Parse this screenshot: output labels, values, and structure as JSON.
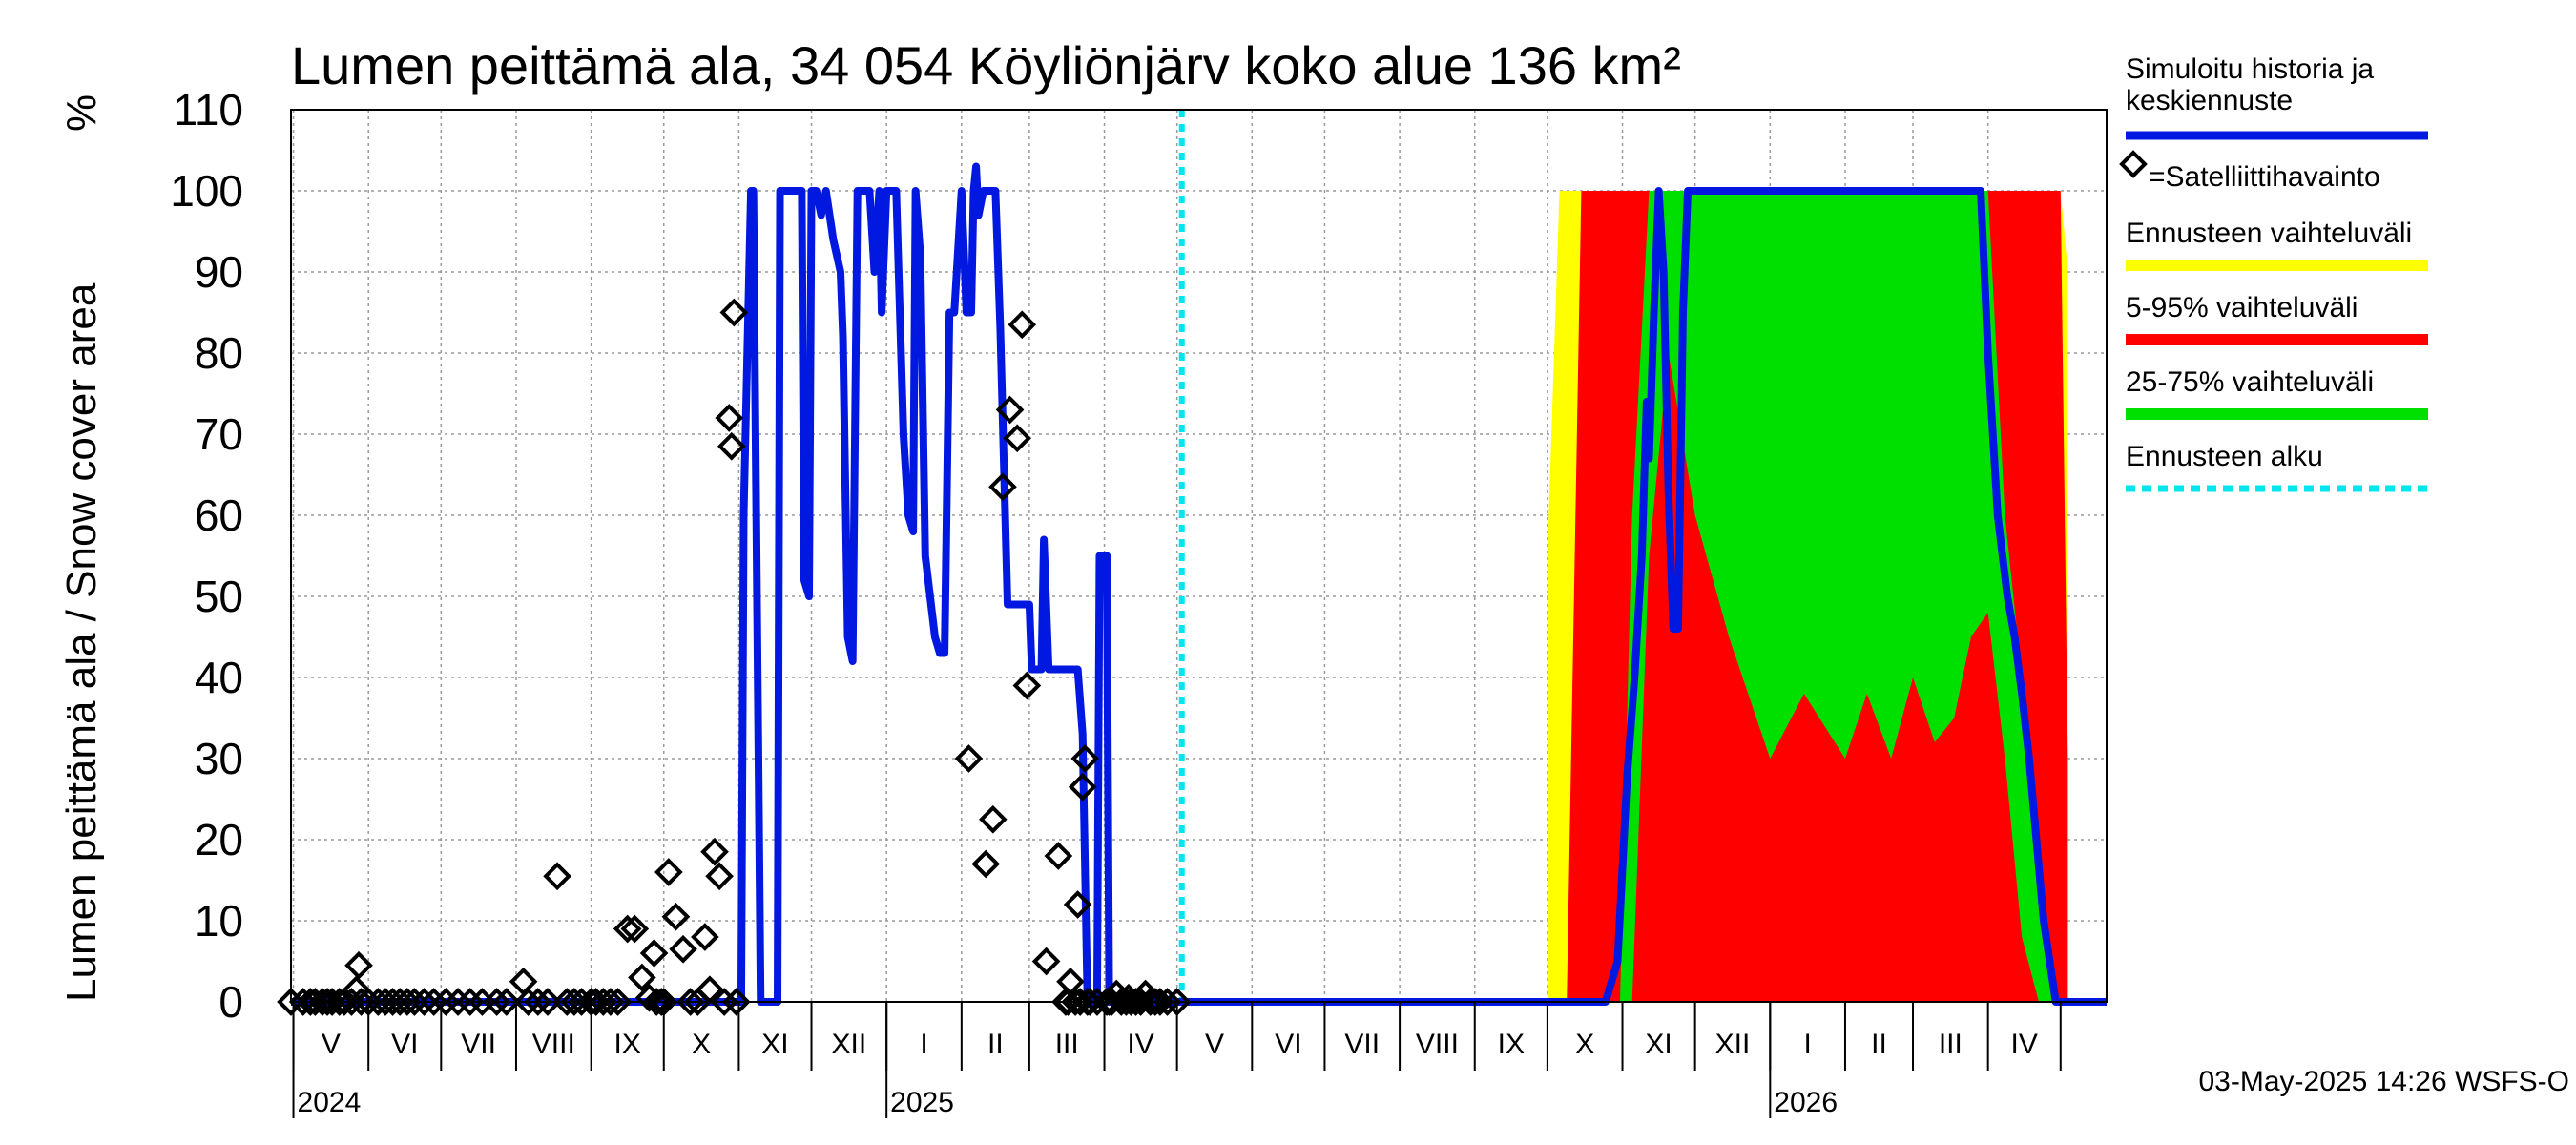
{
  "chart_data": {
    "type": "area",
    "title": "Lumen peittämä ala, 34 054 Köyliönjärv koko alue 136 km²",
    "ylabel": "Lumen peittämä ala / Snow cover area",
    "yunit": "%",
    "ylim": [
      0,
      110
    ],
    "yticks": [
      0,
      10,
      20,
      30,
      40,
      50,
      60,
      70,
      80,
      90,
      100,
      110
    ],
    "xlim": [
      "2024-04-30",
      "2026-05-20"
    ],
    "grid": true,
    "forecast_start": "2025-05-03",
    "timestamp": "03-May-2025 14:26 WSFS-O",
    "months": [
      {
        "label": "V",
        "start": "2024-05-01",
        "end": "2024-06-01"
      },
      {
        "label": "VI",
        "start": "2024-06-01",
        "end": "2024-07-01"
      },
      {
        "label": "VII",
        "start": "2024-07-01",
        "end": "2024-08-01"
      },
      {
        "label": "VIII",
        "start": "2024-08-01",
        "end": "2024-09-01"
      },
      {
        "label": "IX",
        "start": "2024-09-01",
        "end": "2024-10-01"
      },
      {
        "label": "X",
        "start": "2024-10-01",
        "end": "2024-11-01"
      },
      {
        "label": "XI",
        "start": "2024-11-01",
        "end": "2024-12-01"
      },
      {
        "label": "XII",
        "start": "2024-12-01",
        "end": "2025-01-01"
      },
      {
        "label": "I",
        "start": "2025-01-01",
        "end": "2025-02-01"
      },
      {
        "label": "II",
        "start": "2025-02-01",
        "end": "2025-03-01"
      },
      {
        "label": "III",
        "start": "2025-03-01",
        "end": "2025-04-01"
      },
      {
        "label": "IV",
        "start": "2025-04-01",
        "end": "2025-05-01"
      },
      {
        "label": "V",
        "start": "2025-05-01",
        "end": "2025-06-01"
      },
      {
        "label": "VI",
        "start": "2025-06-01",
        "end": "2025-07-01"
      },
      {
        "label": "VII",
        "start": "2025-07-01",
        "end": "2025-08-01"
      },
      {
        "label": "VIII",
        "start": "2025-08-01",
        "end": "2025-09-01"
      },
      {
        "label": "IX",
        "start": "2025-09-01",
        "end": "2025-10-01"
      },
      {
        "label": "X",
        "start": "2025-10-01",
        "end": "2025-11-01"
      },
      {
        "label": "XI",
        "start": "2025-11-01",
        "end": "2025-12-01"
      },
      {
        "label": "XII",
        "start": "2025-12-01",
        "end": "2026-01-01"
      },
      {
        "label": "I",
        "start": "2026-01-01",
        "end": "2026-02-01"
      },
      {
        "label": "II",
        "start": "2026-02-01",
        "end": "2026-03-01"
      },
      {
        "label": "III",
        "start": "2026-03-01",
        "end": "2026-04-01"
      },
      {
        "label": "IV",
        "start": "2026-04-01",
        "end": "2026-05-01"
      }
    ],
    "years": [
      {
        "label": "2024",
        "date": "2024-05-01"
      },
      {
        "label": "2025",
        "date": "2025-01-01"
      },
      {
        "label": "2026",
        "date": "2026-01-01"
      }
    ],
    "legend": [
      {
        "key": "sim",
        "label": "Simuloitu historia ja keskiennuste",
        "color": "#0018e0",
        "kind": "line"
      },
      {
        "key": "sat",
        "label": "=Satelliittihavainto",
        "color": "#000000",
        "kind": "marker"
      },
      {
        "key": "ens",
        "label": "Ennusteen vaihteluväli",
        "color": "#ffff00",
        "kind": "band"
      },
      {
        "key": "p595",
        "label": "5-95% vaihteluväli",
        "color": "#ff0000",
        "kind": "band"
      },
      {
        "key": "p2575",
        "label": "25-75% vaihteluväli",
        "color": "#00e000",
        "kind": "band"
      },
      {
        "key": "fstart",
        "label": "Ennusteen alku",
        "color": "#00e5ee",
        "kind": "dashed"
      }
    ],
    "series": [
      {
        "key": "sim",
        "name": "Simuloitu historia ja keskiennuste",
        "x": [
          "2024-04-30",
          "2024-11-02",
          "2024-11-03",
          "2024-11-06",
          "2024-11-07",
          "2024-11-10",
          "2024-11-11",
          "2024-11-17",
          "2024-11-18",
          "2024-11-22",
          "2024-11-23",
          "2024-11-27",
          "2024-11-28",
          "2024-11-30",
          "2024-12-01",
          "2024-12-03",
          "2024-12-05",
          "2024-12-07",
          "2024-12-10",
          "2024-12-13",
          "2024-12-14",
          "2024-12-16",
          "2024-12-18",
          "2024-12-20",
          "2024-12-22",
          "2024-12-23",
          "2024-12-25",
          "2024-12-27",
          "2024-12-29",
          "2024-12-30",
          "2025-01-01",
          "2025-01-03",
          "2025-01-05",
          "2025-01-06",
          "2025-01-08",
          "2025-01-10",
          "2025-01-12",
          "2025-01-13",
          "2025-01-15",
          "2025-01-17",
          "2025-01-19",
          "2025-01-21",
          "2025-01-23",
          "2025-01-25",
          "2025-01-27",
          "2025-01-29",
          "2025-02-01",
          "2025-02-03",
          "2025-02-05",
          "2025-02-06",
          "2025-02-07",
          "2025-02-08",
          "2025-02-10",
          "2025-02-12",
          "2025-02-15",
          "2025-02-17",
          "2025-02-20",
          "2025-02-23",
          "2025-03-01",
          "2025-03-02",
          "2025-03-06",
          "2025-03-07",
          "2025-03-09",
          "2025-03-11",
          "2025-03-21",
          "2025-03-23",
          "2025-03-25",
          "2025-03-26",
          "2025-03-29",
          "2025-03-30",
          "2025-04-02",
          "2025-04-03",
          "2025-04-06",
          "2025-04-07",
          "2025-04-08",
          "2025-04-09",
          "2025-04-10",
          "2025-04-11",
          "2025-04-12",
          "2025-05-03",
          "2025-10-09",
          "2025-10-20",
          "2025-10-25",
          "2025-10-30",
          "2025-11-03",
          "2025-11-06",
          "2025-11-09",
          "2025-11-11",
          "2025-11-12",
          "2025-11-14",
          "2025-11-16",
          "2025-11-18",
          "2025-11-20",
          "2025-11-22",
          "2025-11-24",
          "2025-11-26",
          "2025-11-28",
          "2025-12-01",
          "2026-03-25",
          "2026-03-29",
          "2026-04-01",
          "2026-04-05",
          "2026-04-09",
          "2026-04-12",
          "2026-04-15",
          "2026-04-18",
          "2026-04-21",
          "2026-04-24",
          "2026-04-27",
          "2026-04-29",
          "2026-05-03",
          "2026-05-20"
        ],
        "y": [
          0,
          0,
          60,
          100,
          100,
          0,
          0,
          0,
          100,
          100,
          100,
          100,
          52,
          50,
          100,
          100,
          97,
          100,
          94,
          90,
          82,
          45,
          42,
          100,
          100,
          100,
          100,
          90,
          100,
          85,
          100,
          100,
          100,
          90,
          70,
          60,
          58,
          100,
          92,
          55,
          50,
          45,
          43,
          43,
          85,
          85,
          100,
          85,
          85,
          100,
          103,
          97,
          100,
          100,
          100,
          83,
          49,
          49,
          49,
          41,
          41,
          57,
          41,
          41,
          41,
          33,
          0,
          0,
          0,
          55,
          55,
          0,
          0,
          0,
          0,
          0,
          0,
          0,
          0,
          0,
          0,
          0,
          0,
          5,
          28,
          40,
          55,
          74,
          67,
          85,
          100,
          90,
          63,
          46,
          46,
          85,
          100,
          100,
          100,
          100,
          80,
          60,
          50,
          45,
          38,
          30,
          20,
          10,
          4,
          0,
          0,
          0
        ]
      }
    ],
    "satellite": {
      "x": [
        "2024-04-30",
        "2024-05-05",
        "2024-05-08",
        "2024-05-10",
        "2024-05-13",
        "2024-05-15",
        "2024-05-17",
        "2024-05-20",
        "2024-05-22",
        "2024-05-25",
        "2024-05-27",
        "2024-05-28",
        "2024-05-29",
        "2024-06-01",
        "2024-06-05",
        "2024-06-08",
        "2024-06-11",
        "2024-06-14",
        "2024-06-17",
        "2024-06-20",
        "2024-06-24",
        "2024-06-28",
        "2024-07-03",
        "2024-07-08",
        "2024-07-13",
        "2024-07-18",
        "2024-07-24",
        "2024-07-28",
        "2024-08-04",
        "2024-08-06",
        "2024-08-10",
        "2024-08-14",
        "2024-08-18",
        "2024-08-22",
        "2024-08-25",
        "2024-08-28",
        "2024-09-01",
        "2024-09-03",
        "2024-09-06",
        "2024-09-09",
        "2024-09-12",
        "2024-09-16",
        "2024-09-19",
        "2024-09-22",
        "2024-09-25",
        "2024-09-27",
        "2024-09-28",
        "2024-09-30",
        "2024-10-01",
        "2024-10-03",
        "2024-10-06",
        "2024-10-09",
        "2024-10-12",
        "2024-10-15",
        "2024-10-18",
        "2024-10-20",
        "2024-10-22",
        "2024-10-24",
        "2024-10-26",
        "2024-10-28",
        "2024-10-29",
        "2024-10-30",
        "2024-10-31",
        "2025-02-04",
        "2025-02-11",
        "2025-02-14",
        "2025-02-18",
        "2025-02-21",
        "2025-02-24",
        "2025-02-26",
        "2025-02-28",
        "2025-03-08",
        "2025-03-13",
        "2025-03-16",
        "2025-03-17",
        "2025-03-18",
        "2025-03-20",
        "2025-03-21",
        "2025-03-22",
        "2025-03-23",
        "2025-03-24",
        "2025-03-25",
        "2025-03-26",
        "2025-03-29",
        "2025-04-02",
        "2025-04-03",
        "2025-04-04",
        "2025-04-06",
        "2025-04-08",
        "2025-04-10",
        "2025-04-11",
        "2025-04-12",
        "2025-04-14",
        "2025-04-16",
        "2025-04-18",
        "2025-04-20",
        "2025-04-22",
        "2025-04-24",
        "2025-04-27",
        "2025-05-01"
      ],
      "y": [
        0,
        0,
        0,
        0,
        0,
        0,
        0,
        0,
        0,
        0,
        1.5,
        4.5,
        0,
        0,
        0,
        0,
        0,
        0,
        0,
        0,
        0,
        0,
        0,
        0,
        0,
        0,
        0,
        0,
        2.5,
        0,
        0,
        0,
        15.5,
        0,
        0,
        0,
        0,
        0,
        0,
        0,
        0,
        9,
        9,
        3,
        0.5,
        6,
        0,
        0,
        0,
        16,
        10.5,
        6.5,
        0,
        0,
        8,
        1.5,
        18.5,
        15.5,
        0,
        72,
        68.5,
        85,
        0,
        30,
        17,
        22.5,
        63.5,
        73,
        69.5,
        83.5,
        39,
        5,
        18,
        0,
        0,
        2.5,
        0,
        12,
        0,
        26.5,
        30,
        0,
        0,
        0,
        0,
        0,
        0,
        1,
        0,
        0,
        0.5,
        0,
        0,
        0,
        1,
        0,
        0,
        0,
        0,
        0
      ]
    },
    "bands_forecast": {
      "x": [
        "2025-10-01",
        "2025-10-06",
        "2025-10-09",
        "2025-10-15",
        "2025-10-24",
        "2025-10-31",
        "2025-11-05",
        "2025-11-12",
        "2025-11-20",
        "2025-12-01",
        "2025-12-15",
        "2026-01-01",
        "2026-01-15",
        "2026-02-01",
        "2026-02-10",
        "2026-02-20",
        "2026-03-01",
        "2026-03-10",
        "2026-03-18",
        "2026-03-25",
        "2026-04-01",
        "2026-04-08",
        "2026-04-15",
        "2026-04-22",
        "2026-04-28",
        "2026-05-01",
        "2026-05-04"
      ],
      "ens_low": [
        0,
        0,
        0,
        0,
        0,
        0,
        0,
        0,
        0,
        0,
        0,
        0,
        0,
        0,
        0,
        0,
        0,
        0,
        0,
        0,
        0,
        0,
        0,
        0,
        0,
        0,
        0
      ],
      "ens_high": [
        55,
        100,
        100,
        100,
        100,
        100,
        100,
        100,
        100,
        100,
        100,
        100,
        100,
        100,
        100,
        100,
        100,
        100,
        100,
        100,
        100,
        100,
        100,
        100,
        100,
        100,
        90
      ],
      "p5": [
        0,
        0,
        0,
        0,
        0,
        0,
        0,
        0,
        0,
        0,
        0,
        0,
        0,
        0,
        0,
        0,
        0,
        0,
        0,
        0,
        0,
        0,
        0,
        0,
        0,
        0,
        0
      ],
      "p95": [
        0,
        0,
        0,
        100,
        100,
        100,
        100,
        100,
        100,
        100,
        100,
        100,
        100,
        100,
        100,
        100,
        100,
        100,
        100,
        100,
        100,
        100,
        100,
        100,
        100,
        100,
        30
      ],
      "p25": [
        0,
        0,
        0,
        0,
        0,
        0,
        0,
        55,
        80,
        60,
        45,
        30,
        38,
        30,
        38,
        30,
        40,
        32,
        35,
        45,
        48,
        30,
        8,
        0,
        0,
        0,
        0
      ],
      "p75": [
        0,
        0,
        0,
        0,
        0,
        0,
        60,
        100,
        100,
        100,
        100,
        100,
        100,
        100,
        100,
        100,
        100,
        100,
        100,
        100,
        100,
        60,
        40,
        12,
        0,
        0,
        0
      ]
    }
  }
}
